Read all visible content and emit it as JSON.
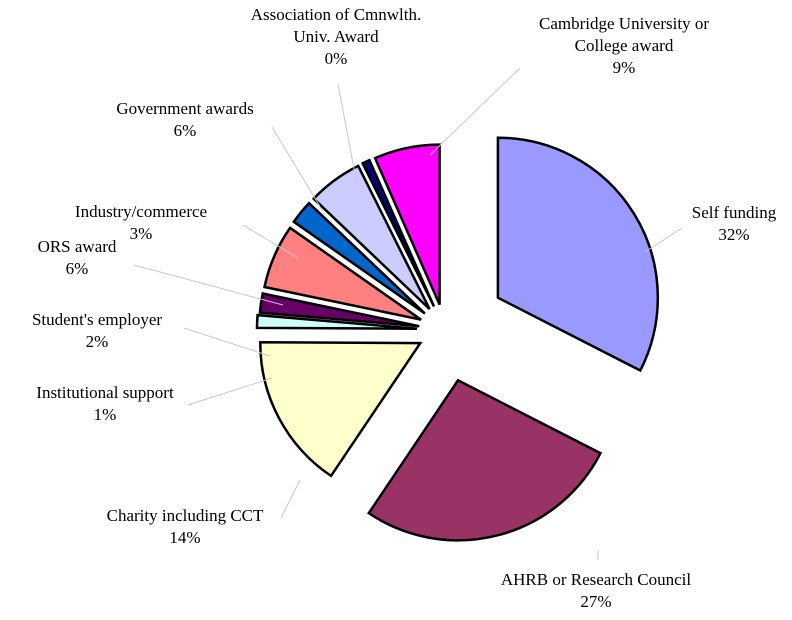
{
  "chart_data": {
    "type": "pie",
    "title": "",
    "slices": [
      {
        "name": "Self funding",
        "value": 32,
        "label": "32%",
        "color": "#9999ff"
      },
      {
        "name": "AHRB or Research Council",
        "value": 27,
        "label": "27%",
        "color": "#993366"
      },
      {
        "name": "Charity including CCT",
        "value": 14,
        "label": "14%",
        "color": "#ffffcc"
      },
      {
        "name": "Institutional support",
        "value": 1,
        "label": "1%",
        "color": "#ccffff"
      },
      {
        "name": "Student's employer",
        "value": 2,
        "label": "2%",
        "color": "#660066"
      },
      {
        "name": "ORS award",
        "value": 6,
        "label": "6%",
        "color": "#ff8080"
      },
      {
        "name": "Industry/commerce",
        "value": 3,
        "label": "3%",
        "color": "#0066cc"
      },
      {
        "name": "Government awards",
        "value": 6,
        "label": "6%",
        "color": "#ccccff"
      },
      {
        "name": "Association of Cmnwlth. Univ. Award",
        "value": 0,
        "label": "0%",
        "color": "#000080"
      },
      {
        "name": "Cambridge University or College award",
        "value": 9,
        "label": "9%",
        "color": "#ff00ff"
      }
    ]
  }
}
